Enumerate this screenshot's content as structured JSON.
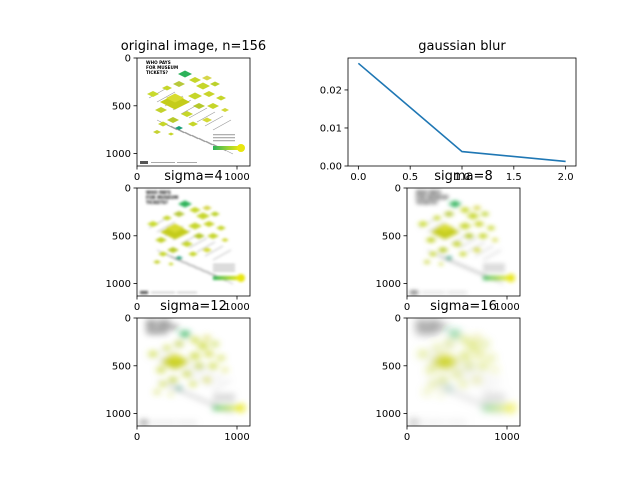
{
  "chart_data": [
    {
      "type": "image",
      "title": "original image, n=156",
      "xticks": [
        0,
        1000
      ],
      "yticks": [
        0,
        500,
        1000
      ],
      "xlim": [
        0,
        1130
      ],
      "ylim": [
        1130,
        0
      ],
      "blur": 0,
      "image": {
        "headline": [
          "WHO PAYS",
          "FOR MUSEUM",
          "TICKETS?"
        ]
      }
    },
    {
      "type": "line",
      "title": "gaussian blur",
      "x": [
        0,
        1,
        2
      ],
      "series": [
        {
          "values": [
            0.027,
            0.0038,
            0.0012
          ]
        }
      ],
      "xticks": [
        "0.0",
        "0.5",
        "1.0",
        "1.5",
        "2.0"
      ],
      "yticks": [
        "0.00",
        "0.01",
        "0.02"
      ],
      "xlim": [
        -0.1,
        2.1
      ],
      "ylim": [
        0,
        0.0284
      ],
      "color": "#1f77b4"
    },
    {
      "type": "image",
      "title": "sigma=4",
      "xticks": [
        0,
        1000
      ],
      "yticks": [
        0,
        500,
        1000
      ],
      "xlim": [
        0,
        1130
      ],
      "ylim": [
        1130,
        0
      ],
      "blur": 1.2,
      "image": {
        "headline": [
          "WHO PAYS",
          "FOR MUSEUM",
          "TICKETS?"
        ]
      }
    },
    {
      "type": "image",
      "title": "sigma=8",
      "xticks": [
        0,
        1000
      ],
      "yticks": [
        0,
        500,
        1000
      ],
      "xlim": [
        0,
        1130
      ],
      "ylim": [
        1130,
        0
      ],
      "blur": 2.2,
      "image": {
        "headline": [
          "WHO PAYS",
          "FOR MUSEUM",
          "TICKETS?"
        ]
      }
    },
    {
      "type": "image",
      "title": "sigma=12",
      "xticks": [
        0,
        1000
      ],
      "yticks": [
        0,
        500,
        1000
      ],
      "xlim": [
        0,
        1130
      ],
      "ylim": [
        1130,
        0
      ],
      "blur": 3.2,
      "image": {
        "headline": [
          "WHO PAYS",
          "FOR MUSEUM",
          "TICKETS?"
        ]
      }
    },
    {
      "type": "image",
      "title": "sigma=16",
      "xticks": [
        0,
        1000
      ],
      "yticks": [
        0,
        500,
        1000
      ],
      "xlim": [
        0,
        1130
      ],
      "ylim": [
        1130,
        0
      ],
      "blur": 4.2,
      "image": {
        "headline": [
          "WHO PAYS",
          "FOR MUSEUM",
          "TICKETS?"
        ]
      }
    }
  ],
  "colors": {
    "line": "#1f77b4",
    "lime": "#c6d62a",
    "yellow": "#e8e60f",
    "green": "#2db25a",
    "teal": "#1aa07a",
    "grey": "#9a9a9a"
  }
}
